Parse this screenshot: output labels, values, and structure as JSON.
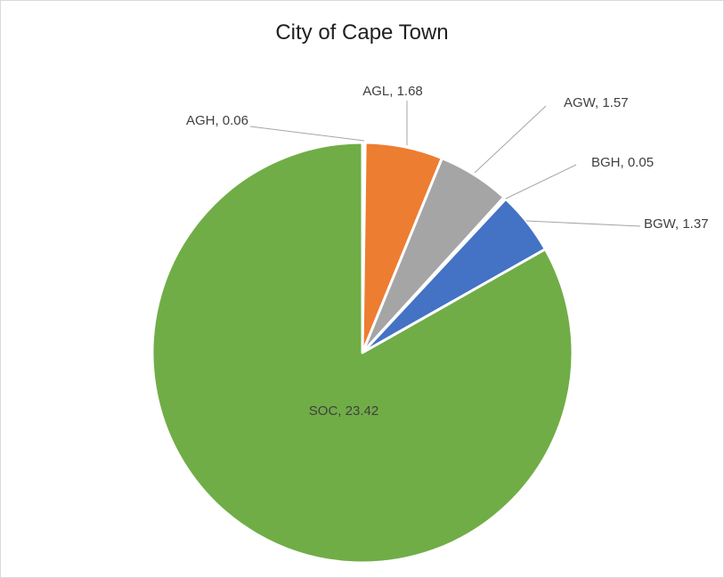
{
  "chart_data": {
    "type": "pie",
    "title": "City of Cape Town",
    "slices": [
      {
        "name": "AGH",
        "value": 0.06,
        "label": "AGH, 0.06",
        "color": "#ffc000"
      },
      {
        "name": "AGL",
        "value": 1.68,
        "label": "AGL, 1.68",
        "color": "#ed7d31"
      },
      {
        "name": "AGW",
        "value": 1.57,
        "label": "AGW, 1.57",
        "color": "#a5a5a5"
      },
      {
        "name": "BGH",
        "value": 0.05,
        "label": "BGH, 0.05",
        "color": "#5b9bd5"
      },
      {
        "name": "BGW",
        "value": 1.37,
        "label": "BGW, 1.37",
        "color": "#4472c4"
      },
      {
        "name": "SOC",
        "value": 23.42,
        "label": "SOC, 23.42",
        "color": "#70ad47"
      }
    ],
    "start_angle": "12 o'clock",
    "direction": "clockwise",
    "legend": "none",
    "border_color": "#ffffff",
    "leader_line_color": "#a6a6a6"
  }
}
